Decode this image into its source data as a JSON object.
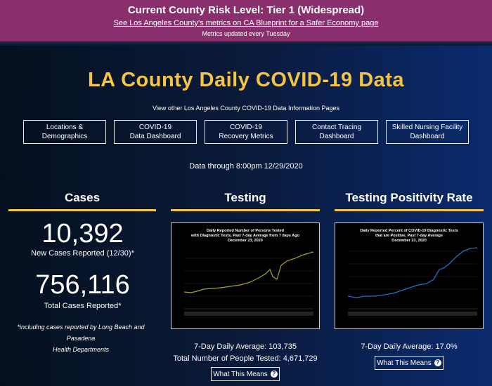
{
  "banner": {
    "risk_level": "Current County Risk Level: Tier 1 (Widespread)",
    "blueprint_link": "See Los Angeles County's metrics on CA Blueprint for a Safer Economy page",
    "updated_note": "Metrics updated every Tuesday"
  },
  "header": {
    "title": "LA County Daily COVID-19 Data",
    "subtitle": "View other Los Angeles County COVID-19 Data Information Pages"
  },
  "nav": [
    {
      "line1": "Locations &",
      "line2": "Demographics"
    },
    {
      "line1": "COVID-19",
      "line2": "Data Dashboard"
    },
    {
      "line1": "COVID-19",
      "line2": "Recovery Metrics"
    },
    {
      "line1": "Contact Tracing",
      "line2": "Dashboard"
    },
    {
      "line1": "Skilled Nursing Facility",
      "line2": "Dashboard"
    }
  ],
  "data_through": "Data through 8:00pm 12/29/2020",
  "cases": {
    "heading": "Cases",
    "new_cases": "10,392",
    "new_cases_label": "New Cases Reported (12/30)*",
    "total_cases": "756,116",
    "total_cases_label": "Total Cases Reported*",
    "footnote_line1": "*including cases reported by Long Beach and Pasadena",
    "footnote_line2": "Health Departments"
  },
  "testing": {
    "heading": "Testing",
    "chart_title_1": "Daily Reported Number of Persons Tested",
    "chart_title_2": "with Diagnostic Tests, Past 7-day Average from 7 days Ago",
    "chart_title_3": "December 23, 2020",
    "daily_avg": "7-Day Daily Average: 103,735",
    "total_tested": "Total Number of People Tested: 4,671,729",
    "what_label": "What This Means",
    "line_color": "#a8a22c"
  },
  "positivity": {
    "heading": "Testing Positivity Rate",
    "chart_title_1": "Daily Reported Percent of COVID-19 Diagnostic Tests",
    "chart_title_2": "that are Positive, Past 7-day Average",
    "chart_title_3": "December 23, 2020",
    "daily_avg": "7-Day Daily Average: 17.0%",
    "what_label": "What This Means",
    "line_color": "#2a6fc0"
  },
  "colors": {
    "banner": "#8a2f6e",
    "accent_gold": "#f4c542",
    "background": "#0b1a3a"
  },
  "icons": {
    "question": "question-circle-icon"
  }
}
